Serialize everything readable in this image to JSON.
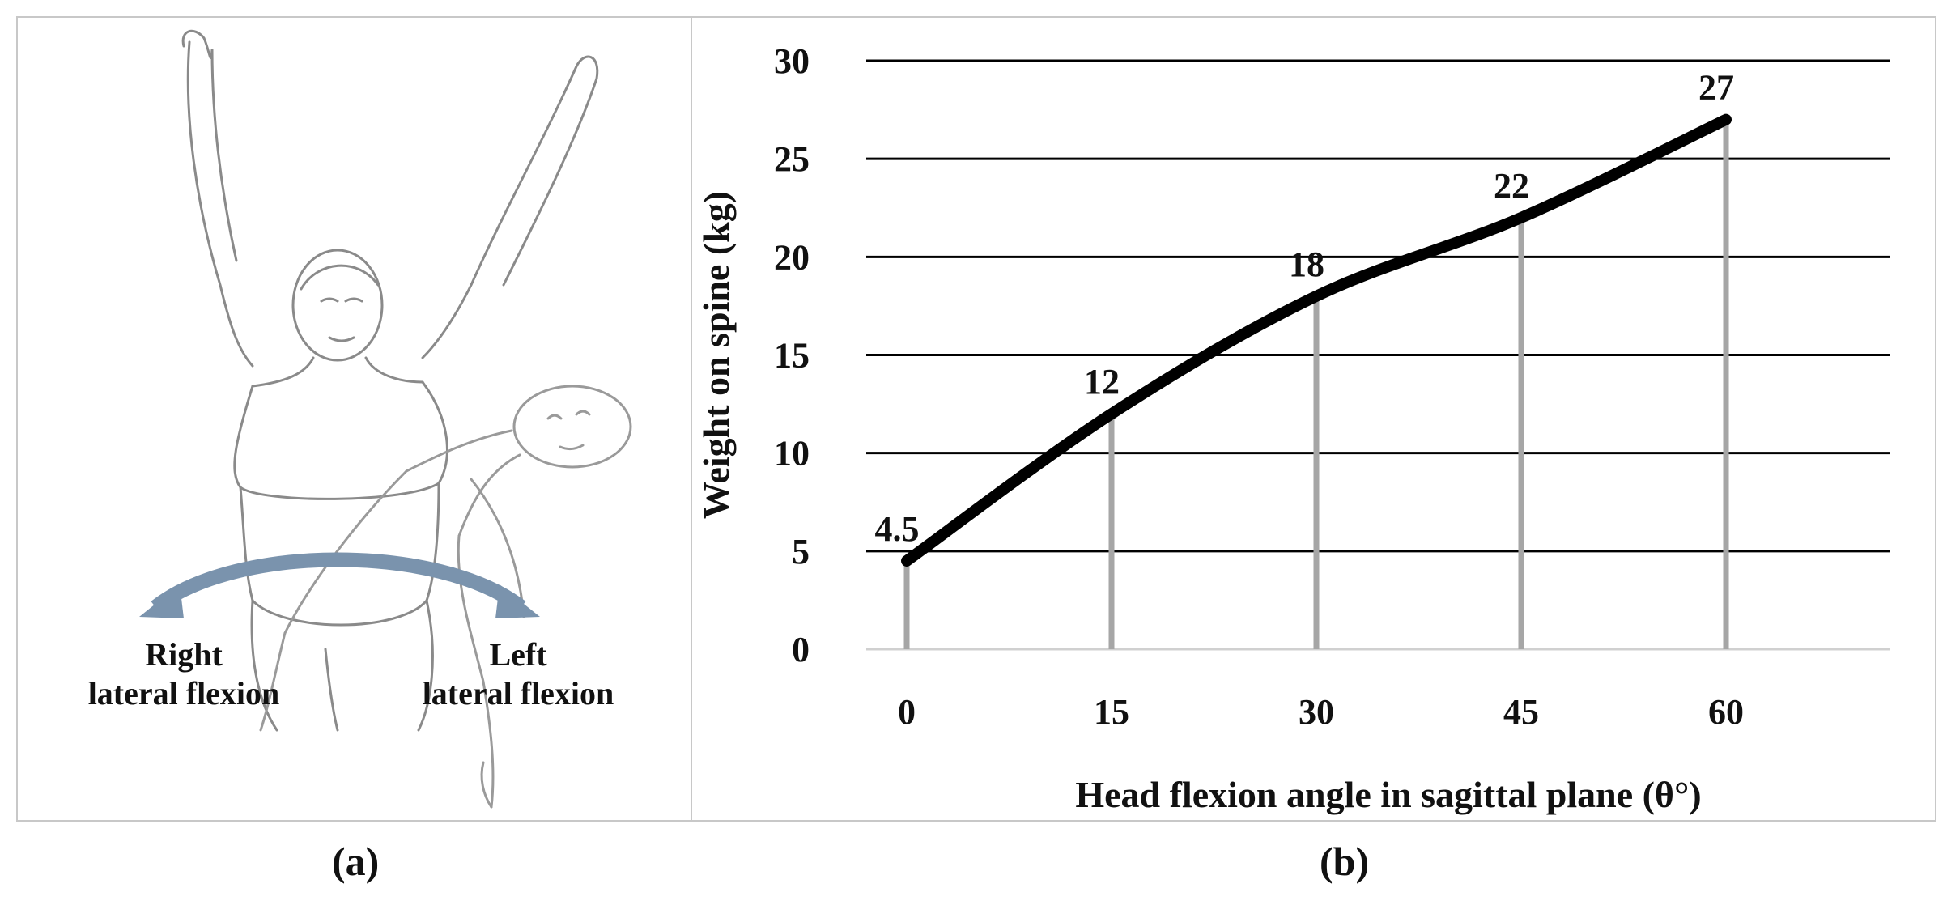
{
  "panel_a": {
    "right_label_line1": "Right",
    "right_label_line2": "lateral flexion",
    "left_label_line1": "Left",
    "left_label_line2": "lateral flexion",
    "caption": "(a)"
  },
  "panel_b": {
    "caption": "(b)"
  },
  "chart_data": {
    "type": "line",
    "title": "",
    "xlabel": "Head flexion angle in sagittal plane (θ°)",
    "ylabel": "Weight on spine (kg)",
    "categories": [
      "0",
      "15",
      "30",
      "45",
      "60"
    ],
    "x": [
      0,
      15,
      30,
      45,
      60
    ],
    "values": [
      4.5,
      12,
      18,
      22,
      27
    ],
    "data_labels": [
      "4.5",
      "12",
      "18",
      "22",
      "27"
    ],
    "ylim": [
      0,
      30
    ],
    "yticks": [
      "0",
      "5",
      "10",
      "15",
      "20",
      "25",
      "30"
    ],
    "grid": "horizontal",
    "drop_lines": true,
    "line_color": "#000000",
    "drop_line_color": "#a6a6a6"
  }
}
